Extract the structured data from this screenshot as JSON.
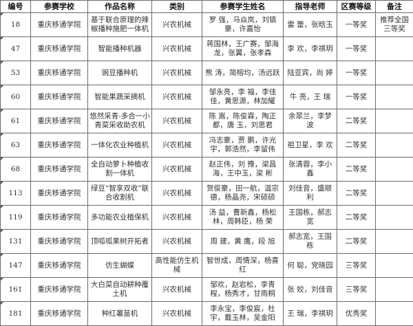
{
  "headers": [
    "编号",
    "参赛学校",
    "作品名称",
    "类别",
    "参赛学生姓名",
    "指导老师",
    "区赛等级",
    "备注"
  ],
  "rows": [
    [
      "18",
      "重庆移通学院",
      "基于联合原理的辣椒播种施肥一体机",
      "兴农机械",
      "罗 强，马焱岚，刘镐豪，许嘉怡",
      "雷 蕾，张晗玉",
      "一等奖",
      "推荐全国三等奖"
    ],
    [
      "47",
      "重庆移通学院",
      "智能播种机器",
      "兴农机械",
      "蒋国林，王广赛，邹海龙，张翼，张孝森",
      "李 欢，李祺玥",
      "一等奖",
      ""
    ],
    [
      "53",
      "重庆移通学院",
      "豌豆播种机",
      "兴农机械",
      "熊 涛，简榕均，汤远跃",
      "陆亚宾，尚 婷",
      "一等奖",
      ""
    ],
    [
      "60",
      "重庆移通学院",
      "智能果蔬采摘机",
      "兴农机械",
      "邹永亮，李 福，李佳佳，黄思源，林加耀",
      "牛 亮，王 瑞",
      "一等奖",
      ""
    ],
    [
      "61",
      "重庆移通学院",
      "悠然采青-多合一小青菜采收助农机",
      "兴农机械",
      "陈 嵩，陈俊霖，陶正都，唐 玉，刘思君",
      "余翠兰，李梦波",
      "二等奖",
      ""
    ],
    [
      "63",
      "重庆移通学院",
      "一体化农业种植机",
      "兴农机械",
      "冯志豪，贾 鹏，许光宇，郭浩然，李留伟",
      "祖卫星，李 欢",
      "二等奖",
      ""
    ],
    [
      "68",
      "重庆移通学院",
      "全自动萝卜种植收割一体机",
      "兴农机械",
      "赵正伟，刘 豫，梁昌海，王中玉，梁 彬",
      "张清蓉，李小鑫",
      "二等奖",
      ""
    ],
    [
      "113",
      "重庆移通学院",
      "绿豆“智享双收”联合收割机",
      "兴农机械",
      "贺俊豪，田一航，温宗德，杨晶尧，宋硕硕",
      "刘佳音，盛顺利",
      "二等奖",
      ""
    ],
    [
      "119",
      "重庆移通学院",
      "多功能农业植保机",
      "兴农机械",
      "汤 益，曹新鑫，杨松林，周韩臣，杨 荣",
      "王国栋，郝志宽",
      "二等奖",
      ""
    ],
    [
      "131",
      "重庆移通学院",
      "顶呱呱果树开拓者",
      "兴农机械",
      "周 建，黄 鹰，段 旭",
      "郝志宽，王国栋",
      "二等奖",
      ""
    ],
    [
      "147",
      "重庆移通学院",
      "仿生蝴蝶",
      "高性能仿生机械",
      "智世成，周情深，杨喜红",
      "何 聪，党晓园",
      "三等奖",
      ""
    ],
    [
      "161",
      "重庆移通学院",
      "大白菜自动耕种覆土机",
      "兴农机械",
      "邹欢，赵岩松，李青程，杨秀才，甘雨桐",
      "张 姣，刘佳音",
      "三等奖",
      ""
    ],
    [
      "181",
      "重庆移通学院",
      "种红薯苗机",
      "兴农机械",
      "李永宝，李俊宸，杜 宇，戴玉林，吴金阳",
      "王 瑞，李祺玥",
      "优秀奖",
      ""
    ]
  ]
}
